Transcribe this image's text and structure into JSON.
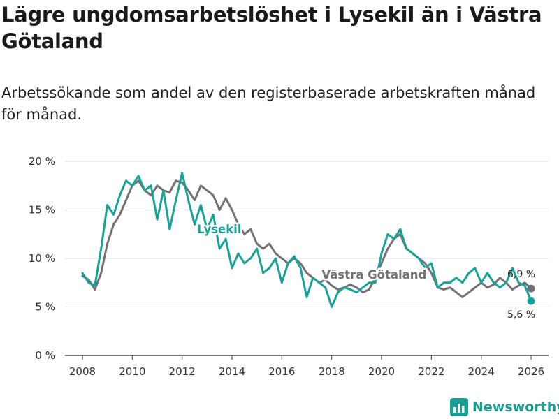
{
  "header": {
    "title": "Lägre ungdomsarbetslöshet i Lysekil än i Västra Götaland",
    "subtitle": "Arbetssökande som andel av den registerbaserade arbetskraften månad för månad."
  },
  "brand": {
    "name": "Newsworthy",
    "color": "#1b9d93"
  },
  "colors": {
    "lysekil": "#17a398",
    "vastra": "#747076",
    "axis": "#333333",
    "grid": "#dddddd"
  },
  "chart_data": {
    "type": "line",
    "title": "Lägre ungdomsarbetslöshet i Lysekil än i Västra Götaland",
    "subtitle": "Arbetssökande som andel av den registerbaserade arbetskraften månad för månad.",
    "xlabel": "",
    "ylabel": "",
    "xlim": [
      2007.3,
      2026.7
    ],
    "ylim": [
      0,
      20
    ],
    "x_ticks": [
      2008,
      2010,
      2012,
      2014,
      2016,
      2018,
      2020,
      2022,
      2024,
      2026
    ],
    "x_tick_labels": [
      "2008",
      "2010",
      "2012",
      "2014",
      "2016",
      "2018",
      "2020",
      "2022",
      "2024",
      "2026"
    ],
    "y_ticks": [
      0,
      5,
      10,
      15,
      20
    ],
    "y_tick_labels": [
      "0 %",
      "5 %",
      "10 %",
      "15 %",
      "20 %"
    ],
    "grid": "horizontal",
    "series": [
      {
        "name": "Västra Götaland",
        "label": "Västra Götaland",
        "end_label": "6,9 %",
        "x": [
          2008.0,
          2008.25,
          2008.5,
          2008.75,
          2009.0,
          2009.25,
          2009.5,
          2009.75,
          2010.0,
          2010.25,
          2010.5,
          2010.75,
          2011.0,
          2011.25,
          2011.5,
          2011.75,
          2012.0,
          2012.25,
          2012.5,
          2012.75,
          2013.0,
          2013.25,
          2013.5,
          2013.75,
          2014.0,
          2014.25,
          2014.5,
          2014.75,
          2015.0,
          2015.25,
          2015.5,
          2015.75,
          2016.0,
          2016.25,
          2016.5,
          2016.75,
          2017.0,
          2017.25,
          2017.5,
          2017.75,
          2018.0,
          2018.25,
          2018.5,
          2018.75,
          2019.0,
          2019.25,
          2019.5,
          2019.75,
          2020.0,
          2020.25,
          2020.5,
          2020.75,
          2021.0,
          2021.25,
          2021.5,
          2021.75,
          2022.0,
          2022.25,
          2022.5,
          2022.75,
          2023.0,
          2023.25,
          2023.5,
          2023.75,
          2024.0,
          2024.25,
          2024.5,
          2024.75,
          2025.0,
          2025.25,
          2025.5,
          2025.75,
          2026.0
        ],
        "y": [
          8.2,
          7.8,
          6.8,
          8.5,
          11.5,
          13.5,
          14.5,
          16.0,
          17.5,
          18.0,
          17.0,
          16.5,
          17.5,
          17.0,
          16.8,
          18.0,
          17.8,
          17.0,
          16.0,
          17.5,
          17.0,
          16.5,
          15.0,
          16.2,
          15.0,
          13.5,
          12.5,
          13.0,
          11.5,
          11.0,
          11.5,
          10.5,
          10.0,
          9.5,
          10.0,
          9.5,
          8.5,
          8.0,
          7.5,
          7.8,
          7.2,
          6.8,
          7.0,
          7.3,
          7.0,
          6.5,
          6.8,
          8.0,
          9.5,
          11.0,
          12.0,
          12.5,
          11.0,
          10.5,
          10.0,
          9.5,
          8.5,
          7.0,
          6.8,
          7.0,
          6.5,
          6.0,
          6.5,
          7.0,
          7.5,
          7.0,
          7.3,
          8.0,
          7.5,
          6.8,
          7.2,
          7.5,
          6.9
        ]
      },
      {
        "name": "Lysekil",
        "label": "Lysekil",
        "end_label": "5,6 %",
        "x": [
          2008.0,
          2008.25,
          2008.5,
          2008.75,
          2009.0,
          2009.25,
          2009.5,
          2009.75,
          2010.0,
          2010.25,
          2010.5,
          2010.75,
          2011.0,
          2011.25,
          2011.5,
          2011.75,
          2012.0,
          2012.25,
          2012.5,
          2012.75,
          2013.0,
          2013.25,
          2013.5,
          2013.75,
          2014.0,
          2014.25,
          2014.5,
          2014.75,
          2015.0,
          2015.25,
          2015.5,
          2015.75,
          2016.0,
          2016.25,
          2016.5,
          2016.75,
          2017.0,
          2017.25,
          2017.5,
          2017.75,
          2018.0,
          2018.25,
          2018.5,
          2018.75,
          2019.0,
          2019.25,
          2019.5,
          2019.75,
          2020.0,
          2020.25,
          2020.5,
          2020.75,
          2021.0,
          2021.25,
          2021.5,
          2021.75,
          2022.0,
          2022.25,
          2022.5,
          2022.75,
          2023.0,
          2023.25,
          2023.5,
          2023.75,
          2024.0,
          2024.25,
          2024.5,
          2024.75,
          2025.0,
          2025.25,
          2025.5,
          2025.75,
          2026.0
        ],
        "y": [
          8.5,
          7.5,
          7.2,
          11.0,
          15.5,
          14.5,
          16.5,
          18.0,
          17.5,
          18.5,
          17.0,
          17.5,
          14.0,
          17.0,
          13.0,
          16.0,
          18.8,
          16.0,
          13.5,
          15.5,
          13.0,
          14.5,
          11.0,
          12.0,
          9.0,
          10.5,
          9.5,
          10.0,
          11.0,
          8.5,
          9.0,
          10.0,
          7.5,
          9.5,
          10.2,
          9.0,
          6.0,
          8.0,
          7.5,
          7.0,
          5.0,
          6.5,
          7.0,
          6.8,
          6.5,
          7.0,
          7.5,
          7.5,
          10.5,
          12.5,
          12.0,
          13.0,
          11.0,
          10.5,
          10.0,
          9.0,
          9.5,
          7.0,
          7.5,
          7.5,
          8.0,
          7.5,
          8.5,
          9.0,
          7.5,
          8.5,
          7.5,
          7.0,
          7.5,
          9.0,
          7.5,
          7.2,
          5.6
        ]
      }
    ]
  }
}
